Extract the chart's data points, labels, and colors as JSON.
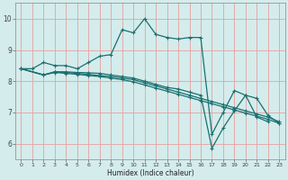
{
  "xlabel": "Humidex (Indice chaleur)",
  "xlim": [
    -0.5,
    23.5
  ],
  "ylim": [
    5.5,
    10.5
  ],
  "xticks": [
    0,
    1,
    2,
    3,
    4,
    5,
    6,
    7,
    8,
    9,
    10,
    11,
    12,
    13,
    14,
    15,
    16,
    17,
    18,
    19,
    20,
    21,
    22,
    23
  ],
  "yticks": [
    6,
    7,
    8,
    9,
    10
  ],
  "bg_color": "#d4ecec",
  "grid_color": "#e8a0a0",
  "line_color": "#1a7070",
  "series": [
    {
      "x": [
        0,
        1,
        2,
        3,
        4,
        5,
        6,
        7,
        8,
        9,
        10,
        11,
        12,
        13,
        14,
        15,
        16,
        17,
        18,
        19,
        20,
        21,
        22
      ],
      "y": [
        8.4,
        8.4,
        8.6,
        8.5,
        8.5,
        8.4,
        8.6,
        8.8,
        8.85,
        9.65,
        9.55,
        10.0,
        9.5,
        9.4,
        9.35,
        9.4,
        9.4,
        6.3,
        7.0,
        7.7,
        7.55,
        6.85,
        6.7
      ]
    },
    {
      "x": [
        0,
        2,
        3,
        4,
        5,
        6,
        7,
        8,
        9,
        10,
        11,
        12,
        13,
        14,
        15,
        16,
        17,
        18,
        19,
        20,
        21,
        22,
        23
      ],
      "y": [
        8.4,
        8.2,
        8.3,
        8.3,
        8.28,
        8.27,
        8.25,
        8.2,
        8.15,
        8.1,
        8.0,
        7.9,
        7.8,
        7.75,
        7.65,
        7.55,
        5.85,
        6.5,
        7.05,
        7.55,
        7.45,
        6.9,
        6.65
      ]
    },
    {
      "x": [
        0,
        2,
        3,
        4,
        5,
        6,
        7,
        8,
        9,
        10,
        11,
        12,
        13,
        14,
        15,
        16,
        17,
        18,
        19,
        20,
        21,
        22,
        23
      ],
      "y": [
        8.4,
        8.2,
        8.3,
        8.28,
        8.25,
        8.22,
        8.18,
        8.15,
        8.1,
        8.05,
        7.95,
        7.85,
        7.75,
        7.65,
        7.55,
        7.45,
        7.35,
        7.25,
        7.15,
        7.05,
        6.95,
        6.85,
        6.7
      ]
    },
    {
      "x": [
        0,
        2,
        3,
        4,
        5,
        6,
        7,
        8,
        9,
        10,
        11,
        12,
        13,
        14,
        15,
        16,
        17,
        18,
        19,
        20,
        21,
        22,
        23
      ],
      "y": [
        8.4,
        8.2,
        8.28,
        8.25,
        8.22,
        8.18,
        8.15,
        8.1,
        8.05,
        7.98,
        7.88,
        7.78,
        7.68,
        7.58,
        7.48,
        7.38,
        7.28,
        7.18,
        7.08,
        6.98,
        6.88,
        6.78,
        6.65
      ]
    }
  ]
}
